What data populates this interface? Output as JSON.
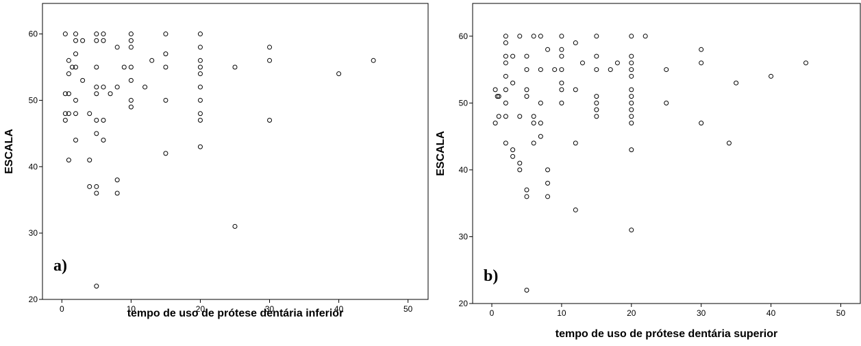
{
  "chart_data": [
    {
      "type": "scatter",
      "annotation": "a)",
      "xlabel": "tempo de uso de prótese dentária inferior",
      "ylabel": "ESCALA",
      "xlim": [
        -2.8,
        52.9
      ],
      "ylim": [
        20,
        64.6
      ],
      "xticks": [
        0,
        10,
        20,
        30,
        40,
        50
      ],
      "yticks": [
        20,
        30,
        40,
        50,
        60
      ],
      "color": "#000000",
      "x": [
        0.5,
        2,
        5,
        6,
        10,
        15,
        20,
        2,
        3,
        5,
        6,
        10,
        20,
        8,
        10,
        30,
        2,
        15,
        1,
        13,
        20,
        30,
        45,
        1.5,
        2,
        5,
        9,
        10,
        15,
        20,
        25,
        1,
        20,
        40,
        3,
        10,
        5,
        6,
        8,
        12,
        20,
        0.5,
        1,
        5,
        7,
        2,
        10,
        15,
        20,
        10,
        0.5,
        1,
        2,
        4,
        20,
        0.5,
        5,
        6,
        20,
        30,
        5,
        2,
        6,
        20,
        15,
        1,
        4,
        8,
        4,
        5,
        5,
        8,
        25,
        5
      ],
      "values": [
        60,
        60,
        60,
        60,
        60,
        60,
        60,
        59,
        59,
        59,
        59,
        59,
        58,
        58,
        58,
        58,
        57,
        57,
        56,
        56,
        56,
        56,
        56,
        55,
        55,
        55,
        55,
        55,
        55,
        55,
        55,
        54,
        54,
        54,
        53,
        53,
        52,
        52,
        52,
        52,
        52,
        51,
        51,
        51,
        51,
        50,
        50,
        50,
        50,
        49,
        48,
        48,
        48,
        48,
        48,
        47,
        47,
        47,
        47,
        47,
        45,
        44,
        44,
        43,
        42,
        41,
        41,
        38,
        37,
        37,
        36,
        36,
        31,
        22
      ]
    },
    {
      "type": "scatter",
      "annotation": "b)",
      "xlabel": "tempo de uso de prótese dentária superior",
      "ylabel": "ESCALA",
      "xlim": [
        -2.75,
        52.8
      ],
      "ylim": [
        20,
        64.9
      ],
      "xticks": [
        0,
        10,
        20,
        30,
        40,
        50
      ],
      "yticks": [
        20,
        30,
        40,
        50,
        60
      ],
      "color": "#000000",
      "x": [
        2,
        4,
        6,
        7,
        10,
        15,
        20,
        22,
        2,
        12,
        10,
        8,
        30,
        2,
        3,
        5,
        10,
        15,
        20,
        2,
        13,
        18,
        20,
        30,
        45,
        5,
        7,
        9,
        10,
        15,
        17,
        20,
        25,
        2,
        20,
        40,
        3,
        10,
        35,
        2,
        5,
        10,
        12,
        20,
        0.5,
        1,
        0.8,
        5,
        15,
        20,
        2,
        7,
        10,
        15,
        20,
        25,
        15,
        20,
        1,
        2,
        4,
        6,
        15,
        20,
        0.5,
        6,
        7,
        20,
        30,
        7,
        2,
        6,
        12,
        34,
        3,
        20,
        3,
        4,
        4,
        8,
        8,
        5,
        5,
        8,
        12,
        20,
        5
      ],
      "values": [
        60,
        60,
        60,
        60,
        60,
        60,
        60,
        60,
        59,
        59,
        58,
        58,
        58,
        57,
        57,
        57,
        57,
        57,
        57,
        56,
        56,
        56,
        56,
        56,
        56,
        55,
        55,
        55,
        55,
        55,
        55,
        55,
        55,
        54,
        54,
        54,
        53,
        53,
        53,
        52,
        52,
        52,
        52,
        52,
        52,
        51,
        51,
        51,
        51,
        51,
        50,
        50,
        50,
        50,
        50,
        50,
        49,
        49,
        48,
        48,
        48,
        48,
        48,
        48,
        47,
        47,
        47,
        47,
        47,
        45,
        44,
        44,
        44,
        44,
        43,
        43,
        42,
        41,
        40,
        40,
        38,
        37,
        36,
        36,
        34,
        31,
        22
      ]
    }
  ]
}
